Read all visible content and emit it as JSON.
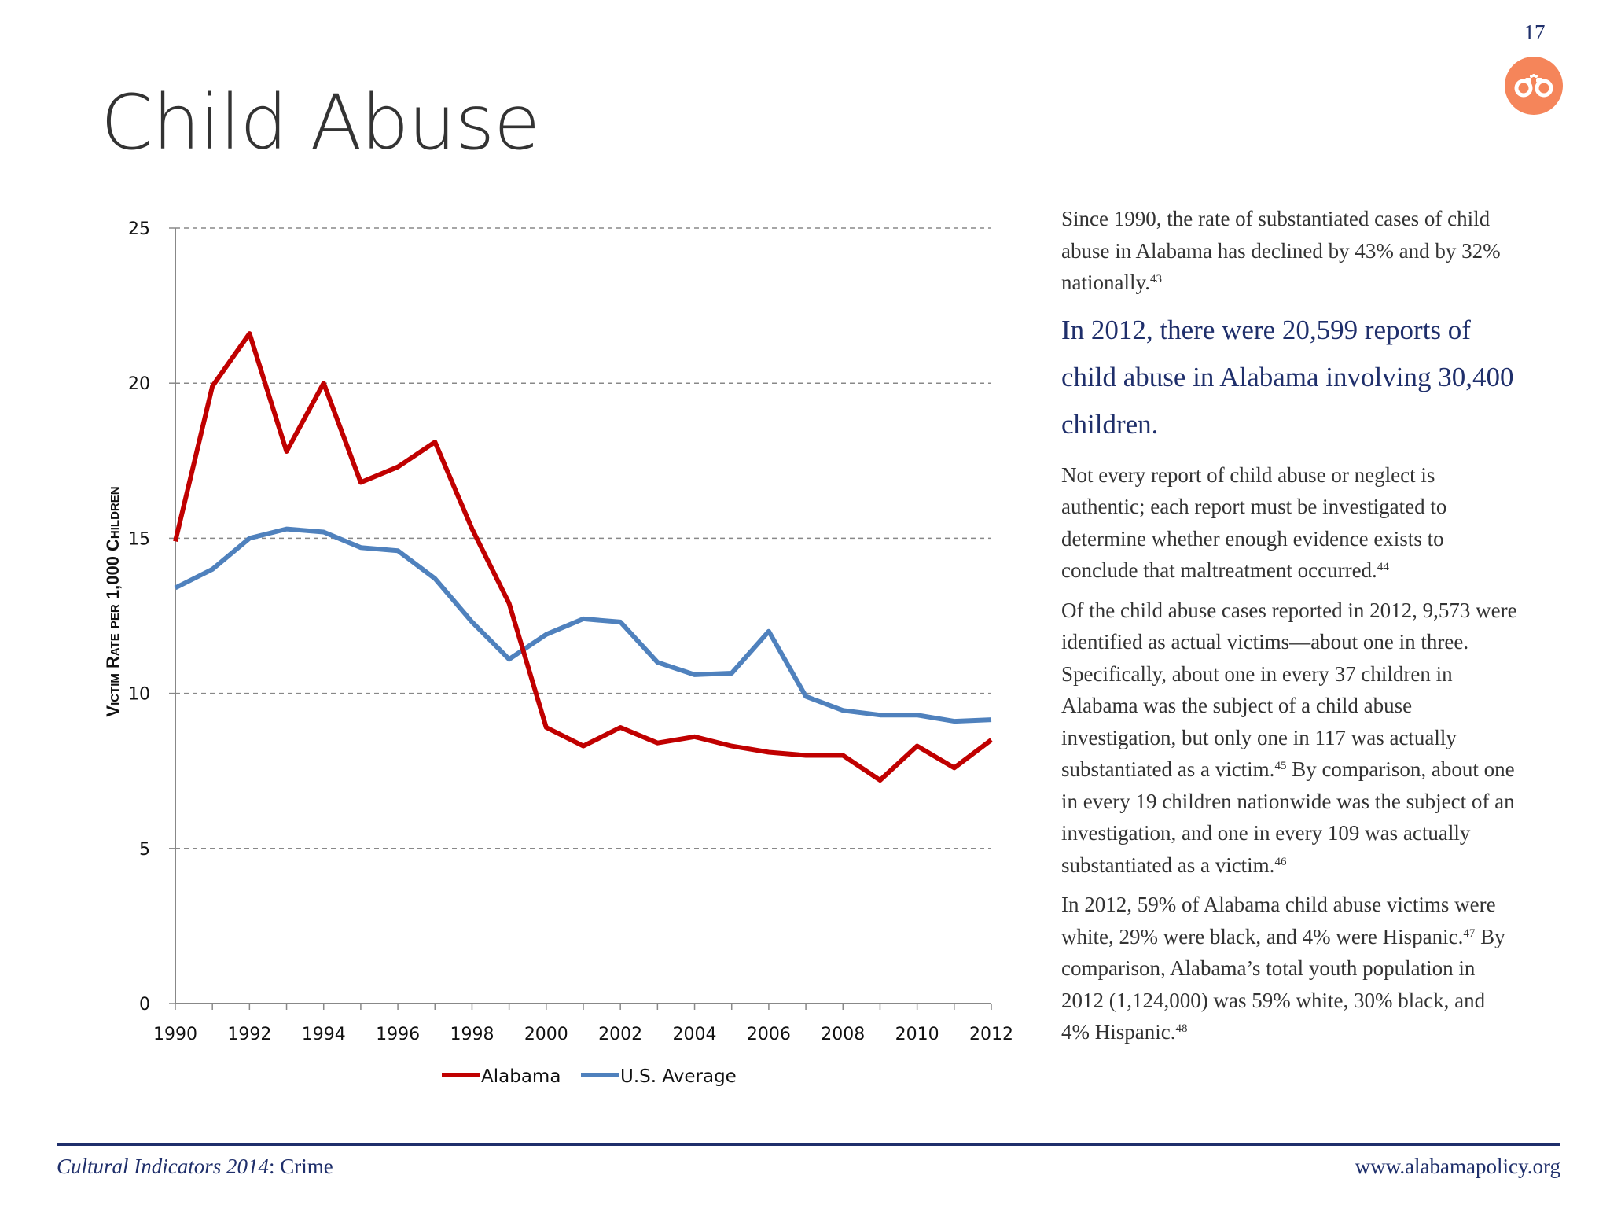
{
  "page_number": "17",
  "badge_icon": "handcuffs-icon",
  "title": "Child Abuse",
  "colors": {
    "alabama": "#c00000",
    "us": "#4f81bd",
    "navy": "#1f2f6b",
    "badge": "#f5855a"
  },
  "chart_data": {
    "type": "line",
    "ylabel": "Victim Rate per 1,000 Children",
    "xlabel": "",
    "ylim": [
      0,
      25
    ],
    "yticks": [
      0,
      5,
      10,
      15,
      20,
      25
    ],
    "xticks": [
      1990,
      1992,
      1994,
      1996,
      1998,
      2000,
      2002,
      2004,
      2006,
      2008,
      2010,
      2012
    ],
    "grid": "horizontal dashed",
    "legend": "bottom",
    "x": [
      1990,
      1991,
      1992,
      1993,
      1994,
      1995,
      1996,
      1997,
      1998,
      1999,
      2000,
      2001,
      2002,
      2003,
      2004,
      2005,
      2006,
      2007,
      2008,
      2009,
      2010,
      2011,
      2012
    ],
    "series": [
      {
        "name": "Alabama",
        "color": "#c00000",
        "values": [
          14.9,
          19.9,
          21.6,
          17.8,
          20.0,
          16.8,
          17.3,
          18.1,
          15.3,
          12.9,
          8.9,
          8.3,
          8.9,
          8.4,
          8.6,
          8.3,
          8.1,
          8.0,
          8.0,
          7.2,
          8.3,
          7.6,
          8.5
        ]
      },
      {
        "name": "U.S. Average",
        "color": "#4f81bd",
        "values": [
          13.4,
          14.0,
          15.0,
          15.3,
          15.2,
          14.7,
          14.6,
          13.7,
          12.3,
          11.1,
          11.9,
          12.4,
          12.3,
          11.0,
          10.6,
          10.65,
          12.0,
          9.9,
          9.45,
          9.3,
          9.3,
          9.1,
          9.15
        ]
      }
    ]
  },
  "paragraphs": [
    {
      "style": "body",
      "segments": [
        {
          "t": "Since 1990, the rate of substantiated cases of child abuse in Alabama has declined by 43% and by 32% nationally."
        },
        {
          "sup": "43"
        }
      ]
    },
    {
      "style": "highlight",
      "segments": [
        {
          "t": "In 2012, there were 20,599 reports of child abuse in Alabama involving 30,400 children."
        }
      ]
    },
    {
      "style": "body",
      "segments": [
        {
          "t": "Not every report of child abuse or neglect is authentic; each report must be investigated to determine whether enough evidence exists to conclude that maltreatment occurred."
        },
        {
          "sup": "44"
        }
      ]
    },
    {
      "style": "body",
      "segments": [
        {
          "t": "Of the child abuse cases reported in 2012, 9,573 were identified as actual victims—about one in three.  Specifically, about one in every 37 children in Alabama was the subject of a child abuse investigation, but only one in 117 was actually substantiated as a victim."
        },
        {
          "sup": "45"
        },
        {
          "t": "  By comparison, about one in every 19 children nationwide was the subject of an investigation, and one in every 109 was actually substantiated as a victim."
        },
        {
          "sup": "46"
        }
      ]
    },
    {
      "style": "body",
      "segments": [
        {
          "t": "In 2012, 59% of Alabama child abuse victims were white, 29% were black, and 4% were Hispanic."
        },
        {
          "sup": "47"
        },
        {
          "t": "  By comparison, Alabama’s total youth population in 2012 (1,124,000) was 59% white, 30% black, and 4% Hispanic."
        },
        {
          "sup": "48"
        }
      ]
    }
  ],
  "footer": {
    "publication": "Cultural Indicators 2014",
    "section": ": Crime",
    "website": "www.alabamapolicy.org"
  }
}
